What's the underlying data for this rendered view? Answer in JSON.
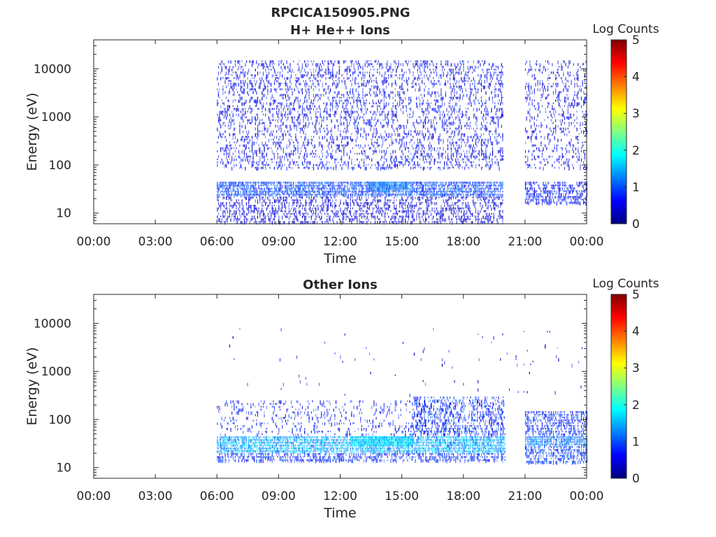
{
  "figure": {
    "title": "RPCICA150905.PNG"
  },
  "chart_data": [
    {
      "type": "heatmap",
      "title": "H+ He++ Ions",
      "xlabel": "Time",
      "ylabel": "Energy (eV)",
      "y_scale": "log",
      "ylim": [
        6,
        40000
      ],
      "xlim_hours": [
        0,
        24
      ],
      "x_ticks": [
        "00:00",
        "03:00",
        "06:00",
        "09:00",
        "12:00",
        "15:00",
        "18:00",
        "21:00",
        "00:00"
      ],
      "x_tick_hours": [
        0,
        3,
        6,
        9,
        12,
        15,
        18,
        21,
        24
      ],
      "y_ticks": [
        "10",
        "100",
        "1000",
        "10000"
      ],
      "y_tick_values": [
        10,
        100,
        1000,
        10000
      ],
      "colorbar": {
        "label": "Log Counts",
        "min": 0,
        "max": 5,
        "ticks": [
          "0",
          "1",
          "2",
          "3",
          "4",
          "5"
        ],
        "colormap": "jet"
      },
      "data_gaps_hours": [
        [
          0,
          6
        ],
        [
          19.9,
          21.0
        ]
      ],
      "regions": [
        {
          "x": [
            6.0,
            19.9
          ],
          "y": [
            80,
            15000
          ],
          "level": [
            0.2,
            0.9
          ],
          "density": 0.3
        },
        {
          "x": [
            21.0,
            24.0
          ],
          "y": [
            80,
            15000
          ],
          "level": [
            0.2,
            0.8
          ],
          "density": 0.22
        },
        {
          "x": [
            6.0,
            19.9
          ],
          "y": [
            22,
            45
          ],
          "level": [
            0.6,
            1.3
          ],
          "density": 0.85
        },
        {
          "x": [
            6.0,
            19.9
          ],
          "y": [
            6,
            22
          ],
          "level": [
            0.2,
            0.7
          ],
          "density": 0.45
        },
        {
          "x": [
            13.3,
            15.3
          ],
          "y": [
            28,
            45
          ],
          "level": [
            1.0,
            1.5
          ],
          "density": 0.95
        },
        {
          "x": [
            21.0,
            24.0
          ],
          "y": [
            15,
            45
          ],
          "level": [
            0.4,
            1.0
          ],
          "density": 0.55
        },
        {
          "x": [
            19.85,
            19.95
          ],
          "y": [
            1000,
            1300
          ],
          "level": [
            0.4,
            0.6
          ],
          "density": 1.0
        },
        {
          "x": [
            19.85,
            19.95
          ],
          "y": [
            120,
            160
          ],
          "level": [
            0.4,
            0.6
          ],
          "density": 1.0
        }
      ]
    },
    {
      "type": "heatmap",
      "title": "Other Ions",
      "xlabel": "Time",
      "ylabel": "Energy (eV)",
      "y_scale": "log",
      "ylim": [
        6,
        40000
      ],
      "xlim_hours": [
        0,
        24
      ],
      "x_ticks": [
        "00:00",
        "03:00",
        "06:00",
        "09:00",
        "12:00",
        "15:00",
        "18:00",
        "21:00",
        "00:00"
      ],
      "x_tick_hours": [
        0,
        3,
        6,
        9,
        12,
        15,
        18,
        21,
        24
      ],
      "y_ticks": [
        "10",
        "100",
        "1000",
        "10000"
      ],
      "y_tick_values": [
        10,
        100,
        1000,
        10000
      ],
      "colorbar": {
        "label": "Log Counts",
        "min": 0,
        "max": 5,
        "ticks": [
          "0",
          "1",
          "2",
          "3",
          "4",
          "5"
        ],
        "colormap": "jet"
      },
      "data_gaps_hours": [
        [
          0,
          6
        ],
        [
          20.0,
          21.0
        ]
      ],
      "regions": [
        {
          "x": [
            6.0,
            20.0
          ],
          "y": [
            20,
            45
          ],
          "level": [
            1.0,
            1.9
          ],
          "density": 0.9
        },
        {
          "x": [
            6.0,
            20.0
          ],
          "y": [
            13,
            20
          ],
          "level": [
            0.5,
            1.1
          ],
          "density": 0.6
        },
        {
          "x": [
            6.0,
            20.0
          ],
          "y": [
            45,
            250
          ],
          "level": [
            0.3,
            1.0
          ],
          "density": 0.18
        },
        {
          "x": [
            12.5,
            15.5
          ],
          "y": [
            28,
            45
          ],
          "level": [
            1.5,
            2.0
          ],
          "density": 0.95
        },
        {
          "x": [
            15.5,
            20.0
          ],
          "y": [
            45,
            300
          ],
          "level": [
            0.5,
            1.2
          ],
          "density": 0.35
        },
        {
          "x": [
            21.0,
            24.0
          ],
          "y": [
            28,
            45
          ],
          "level": [
            0.9,
            1.5
          ],
          "density": 0.95
        },
        {
          "x": [
            21.0,
            24.0
          ],
          "y": [
            45,
            150
          ],
          "level": [
            0.5,
            1.1
          ],
          "density": 0.6
        },
        {
          "x": [
            21.0,
            24.0
          ],
          "y": [
            12,
            28
          ],
          "level": [
            0.6,
            1.2
          ],
          "density": 0.6
        },
        {
          "x": [
            6.0,
            24.0
          ],
          "y": [
            300,
            8000
          ],
          "level": [
            0.2,
            0.6
          ],
          "density": 0.01
        }
      ]
    }
  ]
}
